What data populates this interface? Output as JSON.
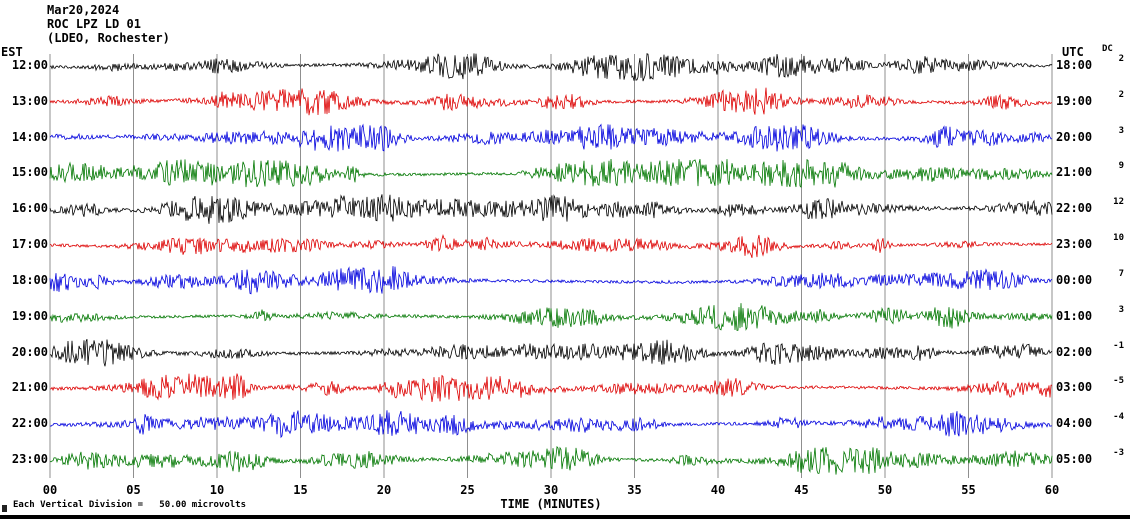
{
  "header": {
    "date": "Mar20,2024",
    "station": "ROC LPZ LD 01",
    "network": "(LDEO, Rochester)"
  },
  "axes": {
    "left_label": "EST",
    "right_label": "UTC",
    "dc_label": "DC",
    "x_label": "TIME (MINUTES)",
    "x_ticks": [
      "00",
      "05",
      "10",
      "15",
      "20",
      "25",
      "30",
      "35",
      "40",
      "45",
      "50",
      "55",
      "60"
    ]
  },
  "footer": {
    "note": "Each Vertical Division =   50.00 microvolts"
  },
  "chart_data": {
    "type": "line",
    "kind": "seismogram-helicorder",
    "title": "ROC LPZ LD 01 (LDEO, Rochester) Mar20,2024",
    "xlabel": "TIME (MINUTES)",
    "x_range_minutes": [
      0,
      60
    ],
    "minutes_per_row": 60,
    "grid_minutes_interval": 5,
    "vertical_division_microvolts": 50.0,
    "grid_on": true,
    "trace_colors_cycle": [
      "#000000",
      "#dd0000",
      "#0000dd",
      "#007700"
    ],
    "rows": [
      {
        "est": "12:00",
        "utc": "18:00",
        "dc": 2,
        "color": "#000000"
      },
      {
        "est": "13:00",
        "utc": "19:00",
        "dc": 2,
        "color": "#dd0000"
      },
      {
        "est": "14:00",
        "utc": "20:00",
        "dc": 3,
        "color": "#0000dd"
      },
      {
        "est": "15:00",
        "utc": "21:00",
        "dc": 9,
        "color": "#007700"
      },
      {
        "est": "16:00",
        "utc": "22:00",
        "dc": 12,
        "color": "#000000"
      },
      {
        "est": "17:00",
        "utc": "23:00",
        "dc": 10,
        "color": "#dd0000"
      },
      {
        "est": "18:00",
        "utc": "00:00",
        "dc": 7,
        "color": "#0000dd"
      },
      {
        "est": "19:00",
        "utc": "01:00",
        "dc": 3,
        "color": "#007700"
      },
      {
        "est": "20:00",
        "utc": "02:00",
        "dc": -1,
        "color": "#000000"
      },
      {
        "est": "21:00",
        "utc": "03:00",
        "dc": -5,
        "color": "#dd0000"
      },
      {
        "est": "22:00",
        "utc": "04:00",
        "dc": -4,
        "color": "#0000dd"
      },
      {
        "est": "23:00",
        "utc": "05:00",
        "dc": -3,
        "color": "#007700"
      }
    ]
  }
}
